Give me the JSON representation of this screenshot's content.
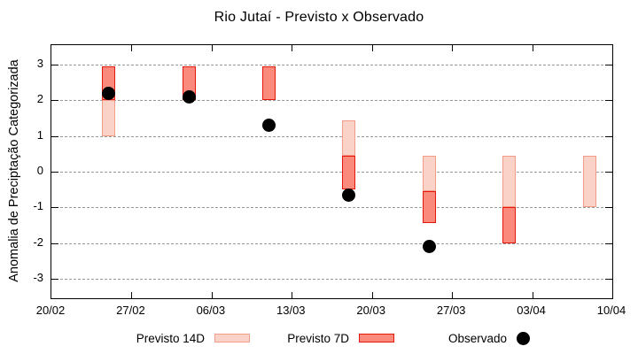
{
  "title": "Rio Jutaí - Previsto x Observado",
  "ylabel": "Anomalia de Preciptação Categorizada",
  "legend": {
    "previsto14_label": "Previsto 14D",
    "previsto7_label": "Previsto 7D",
    "observado_label": "Observado"
  },
  "colors": {
    "previsto_14d_fill": "#fad2c8",
    "previsto_14d_border": "#f29c8a",
    "previsto_7d_fill": "#fa8a7c",
    "previsto_7d_border": "#e8170d",
    "observado": "#000000",
    "grid": "#999999",
    "axis": "#000000",
    "background": "#ffffff"
  },
  "chart_data": {
    "type": "bar",
    "title": "Rio Jutaí - Previsto x Observado",
    "xlabel": "",
    "ylabel": "Anomalia de Preciptação Categorizada",
    "ylim": [
      -3.55,
      3.55
    ],
    "grid": "horizontal-dashed",
    "legend_position": "below-plot",
    "y_ticks": [
      3,
      2,
      1,
      0,
      -1,
      -2,
      -3
    ],
    "x_ticks": [
      {
        "label": "20/02",
        "day": 0
      },
      {
        "label": "27/02",
        "day": 7
      },
      {
        "label": "06/03",
        "day": 14
      },
      {
        "label": "13/03",
        "day": 21
      },
      {
        "label": "20/03",
        "day": 28
      },
      {
        "label": "27/03",
        "day": 35
      },
      {
        "label": "03/04",
        "day": 42
      },
      {
        "label": "10/04",
        "day": 49
      }
    ],
    "x_span_days": 49,
    "series": [
      {
        "name": "Previsto 14D",
        "type": "range-bar"
      },
      {
        "name": "Previsto 7D",
        "type": "range-bar"
      },
      {
        "name": "Observado",
        "type": "scatter"
      }
    ],
    "groups": [
      {
        "date": "25/02",
        "day": 5,
        "previsto_14d": [
          1.0,
          2.0
        ],
        "previsto_7d": [
          2.0,
          2.95
        ],
        "observado": 2.2
      },
      {
        "date": "04/03",
        "day": 12,
        "previsto_14d": null,
        "previsto_7d": [
          2.0,
          2.95
        ],
        "observado": 2.1
      },
      {
        "date": "11/03",
        "day": 19,
        "previsto_14d": null,
        "previsto_7d": [
          2.0,
          2.95
        ],
        "observado": 1.3
      },
      {
        "date": "18/03",
        "day": 26,
        "previsto_14d": [
          0.45,
          1.45
        ],
        "previsto_7d": [
          -0.5,
          0.45
        ],
        "observado": -0.65
      },
      {
        "date": "25/03",
        "day": 33,
        "previsto_14d": [
          -0.55,
          0.45
        ],
        "previsto_7d": [
          -1.45,
          -0.55
        ],
        "observado": -2.1
      },
      {
        "date": "01/04",
        "day": 40,
        "previsto_14d": [
          -1.0,
          0.45
        ],
        "previsto_7d": [
          -2.0,
          -1.0
        ],
        "observado": null
      },
      {
        "date": "08/04",
        "day": 47,
        "previsto_14d": [
          -1.0,
          0.45
        ],
        "previsto_7d": null,
        "observado": null
      }
    ]
  }
}
